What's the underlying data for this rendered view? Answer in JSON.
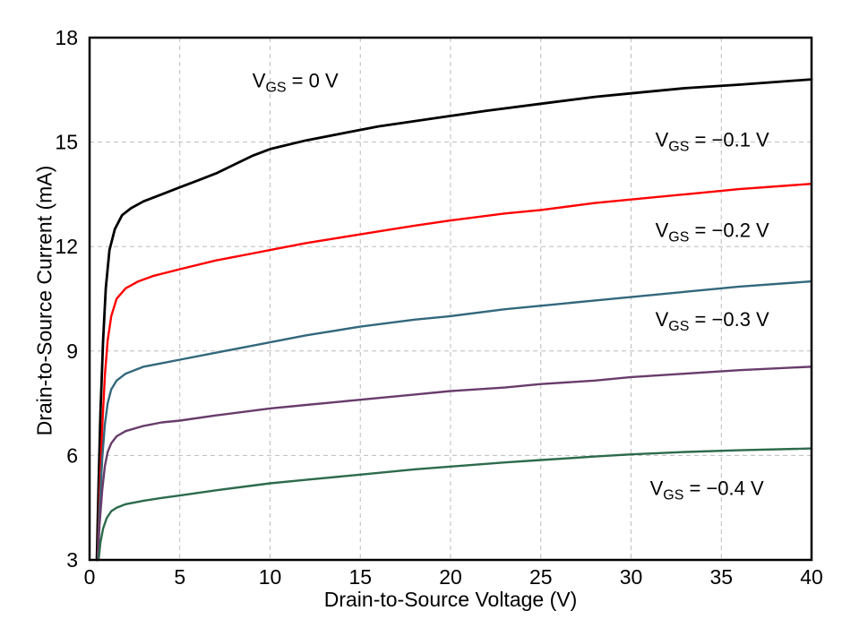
{
  "chart_data": {
    "type": "line",
    "title": "",
    "xlabel": "Drain-to-Source Voltage (V)",
    "ylabel": "Drain-to-Source Current (mA)",
    "xlim": [
      0,
      40
    ],
    "ylim": [
      3,
      18
    ],
    "xticks": [
      0,
      5,
      10,
      15,
      20,
      25,
      30,
      35,
      40
    ],
    "yticks": [
      3,
      6,
      9,
      12,
      15,
      18
    ],
    "grid": "dashed",
    "grid_color": "#bdbdbd",
    "axis_color": "#000000",
    "series": [
      {
        "name": "VGS = 0 V",
        "color": "#000000",
        "width": 2.8,
        "points": [
          [
            0.4,
            3
          ],
          [
            0.5,
            5.2
          ],
          [
            0.6,
            7.2
          ],
          [
            0.75,
            9.3
          ],
          [
            0.9,
            10.8
          ],
          [
            1.1,
            11.9
          ],
          [
            1.4,
            12.5
          ],
          [
            1.8,
            12.9
          ],
          [
            2.3,
            13.1
          ],
          [
            3,
            13.3
          ],
          [
            4,
            13.5
          ],
          [
            5,
            13.7
          ],
          [
            6,
            13.9
          ],
          [
            7,
            14.1
          ],
          [
            8,
            14.35
          ],
          [
            9,
            14.6
          ],
          [
            10,
            14.8
          ],
          [
            12,
            15.05
          ],
          [
            14,
            15.25
          ],
          [
            16,
            15.45
          ],
          [
            18,
            15.6
          ],
          [
            20,
            15.75
          ],
          [
            22,
            15.9
          ],
          [
            25,
            16.1
          ],
          [
            28,
            16.3
          ],
          [
            30,
            16.4
          ],
          [
            33,
            16.55
          ],
          [
            36,
            16.65
          ],
          [
            40,
            16.8
          ]
        ]
      },
      {
        "name": "VGS = -0.1 V",
        "color": "#ff0000",
        "width": 2.4,
        "points": [
          [
            0.45,
            3
          ],
          [
            0.55,
            4.8
          ],
          [
            0.7,
            6.8
          ],
          [
            0.85,
            8.3
          ],
          [
            1.0,
            9.3
          ],
          [
            1.2,
            10.0
          ],
          [
            1.5,
            10.5
          ],
          [
            2,
            10.8
          ],
          [
            2.7,
            11.0
          ],
          [
            3.5,
            11.15
          ],
          [
            5,
            11.35
          ],
          [
            7,
            11.6
          ],
          [
            9,
            11.8
          ],
          [
            10,
            11.9
          ],
          [
            12,
            12.1
          ],
          [
            15,
            12.35
          ],
          [
            18,
            12.6
          ],
          [
            20,
            12.75
          ],
          [
            23,
            12.95
          ],
          [
            25,
            13.05
          ],
          [
            28,
            13.25
          ],
          [
            30,
            13.35
          ],
          [
            33,
            13.5
          ],
          [
            36,
            13.65
          ],
          [
            40,
            13.8
          ]
        ]
      },
      {
        "name": "VGS = -0.2 V",
        "color": "#33687c",
        "width": 2.4,
        "points": [
          [
            0.45,
            3
          ],
          [
            0.55,
            4.4
          ],
          [
            0.7,
            5.9
          ],
          [
            0.85,
            6.9
          ],
          [
            1.0,
            7.5
          ],
          [
            1.2,
            7.9
          ],
          [
            1.5,
            8.15
          ],
          [
            2,
            8.35
          ],
          [
            3,
            8.55
          ],
          [
            4,
            8.65
          ],
          [
            5,
            8.75
          ],
          [
            7,
            8.95
          ],
          [
            10,
            9.25
          ],
          [
            12,
            9.45
          ],
          [
            15,
            9.7
          ],
          [
            18,
            9.9
          ],
          [
            20,
            10.0
          ],
          [
            23,
            10.2
          ],
          [
            25,
            10.3
          ],
          [
            28,
            10.45
          ],
          [
            30,
            10.55
          ],
          [
            33,
            10.7
          ],
          [
            36,
            10.85
          ],
          [
            40,
            11.0
          ]
        ]
      },
      {
        "name": "VGS = -0.3 V",
        "color": "#683c6b",
        "width": 2.4,
        "points": [
          [
            0.45,
            3
          ],
          [
            0.55,
            4.0
          ],
          [
            0.7,
            5.0
          ],
          [
            0.85,
            5.7
          ],
          [
            1.0,
            6.1
          ],
          [
            1.2,
            6.35
          ],
          [
            1.5,
            6.55
          ],
          [
            2,
            6.7
          ],
          [
            3,
            6.85
          ],
          [
            4,
            6.95
          ],
          [
            5,
            7.0
          ],
          [
            7,
            7.15
          ],
          [
            10,
            7.35
          ],
          [
            12,
            7.45
          ],
          [
            15,
            7.6
          ],
          [
            18,
            7.75
          ],
          [
            20,
            7.85
          ],
          [
            23,
            7.95
          ],
          [
            25,
            8.05
          ],
          [
            28,
            8.15
          ],
          [
            30,
            8.25
          ],
          [
            33,
            8.35
          ],
          [
            36,
            8.45
          ],
          [
            40,
            8.55
          ]
        ]
      },
      {
        "name": "VGS = -0.4 V",
        "color": "#2c6b4c",
        "width": 2.4,
        "points": [
          [
            0.5,
            3
          ],
          [
            0.6,
            3.5
          ],
          [
            0.75,
            3.9
          ],
          [
            0.95,
            4.2
          ],
          [
            1.2,
            4.4
          ],
          [
            1.5,
            4.5
          ],
          [
            2,
            4.6
          ],
          [
            3,
            4.7
          ],
          [
            4,
            4.78
          ],
          [
            5,
            4.85
          ],
          [
            7,
            5.0
          ],
          [
            10,
            5.2
          ],
          [
            12,
            5.3
          ],
          [
            15,
            5.45
          ],
          [
            18,
            5.6
          ],
          [
            20,
            5.68
          ],
          [
            23,
            5.8
          ],
          [
            25,
            5.87
          ],
          [
            28,
            5.97
          ],
          [
            30,
            6.03
          ],
          [
            33,
            6.1
          ],
          [
            36,
            6.15
          ],
          [
            40,
            6.2
          ]
        ]
      }
    ],
    "annotations": [
      {
        "pre": "V",
        "sub": "GS",
        "post": " = 0 V",
        "x": 11.4,
        "y": 16.75
      },
      {
        "pre": "V",
        "sub": "GS",
        "post": " = −0.1 V",
        "x": 34.5,
        "y": 15.05
      },
      {
        "pre": "V",
        "sub": "GS",
        "post": " = −0.2 V",
        "x": 34.5,
        "y": 12.45
      },
      {
        "pre": "V",
        "sub": "GS",
        "post": " = −0.3 V",
        "x": 34.5,
        "y": 9.9
      },
      {
        "pre": "V",
        "sub": "GS",
        "post": " = −0.4 V",
        "x": 34.2,
        "y": 5.05
      }
    ],
    "legend": "none"
  }
}
